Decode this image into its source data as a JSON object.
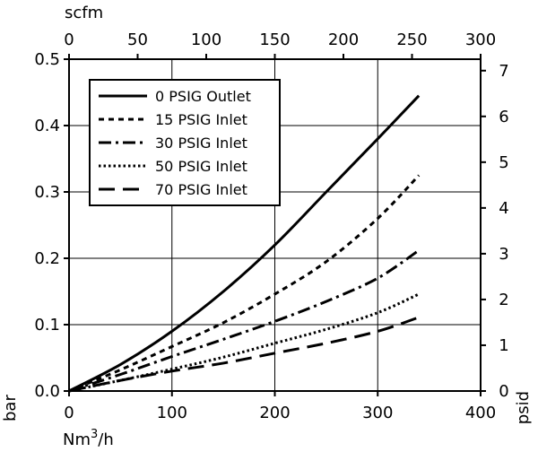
{
  "chart_data": {
    "type": "line",
    "title": "",
    "axes": {
      "bottom": {
        "label": "Nm³/h",
        "label_main": "Nm",
        "label_sup": "3",
        "label_tail": "/h",
        "ticks": [
          0,
          100,
          200,
          300,
          400
        ],
        "range": [
          0,
          400
        ]
      },
      "top": {
        "label": "scfm",
        "ticks": [
          0,
          50,
          100,
          150,
          200,
          250,
          300
        ],
        "range": [
          0,
          300
        ]
      },
      "left": {
        "label": "bar",
        "ticks": [
          "0.0",
          "0.1",
          "0.2",
          "0.3",
          "0.4",
          "0.5"
        ],
        "range": [
          0,
          0.5
        ]
      },
      "right": {
        "label": "psid",
        "ticks": [
          0,
          1,
          2,
          3,
          4,
          5,
          6,
          7
        ],
        "range": [
          0,
          7.25
        ]
      }
    },
    "grid": true,
    "legend": "top-left",
    "series": [
      {
        "name": "0 PSIG Outlet",
        "dash": "solid",
        "x": [
          0,
          50,
          100,
          150,
          200,
          250,
          300,
          340
        ],
        "y": [
          0,
          0.04,
          0.09,
          0.15,
          0.22,
          0.3,
          0.38,
          0.445
        ]
      },
      {
        "name": "15 PSIG Inlet",
        "dash": "short-dash",
        "x": [
          0,
          50,
          100,
          150,
          200,
          250,
          300,
          340
        ],
        "y": [
          0,
          0.032,
          0.067,
          0.103,
          0.146,
          0.195,
          0.26,
          0.325
        ]
      },
      {
        "name": "30 PSIG Inlet",
        "dash": "dash-dot",
        "x": [
          0,
          50,
          100,
          150,
          200,
          250,
          300,
          340
        ],
        "y": [
          0,
          0.025,
          0.052,
          0.078,
          0.105,
          0.135,
          0.17,
          0.212
        ]
      },
      {
        "name": "50 PSIG Inlet",
        "dash": "dotted",
        "x": [
          0,
          50,
          100,
          150,
          200,
          250,
          300,
          340
        ],
        "y": [
          0,
          0.016,
          0.033,
          0.051,
          0.072,
          0.093,
          0.118,
          0.146
        ]
      },
      {
        "name": "70 PSIG Inlet",
        "dash": "long-dash",
        "x": [
          0,
          50,
          100,
          150,
          200,
          250,
          300,
          340
        ],
        "y": [
          0,
          0.016,
          0.03,
          0.042,
          0.057,
          0.072,
          0.09,
          0.111
        ]
      }
    ]
  }
}
